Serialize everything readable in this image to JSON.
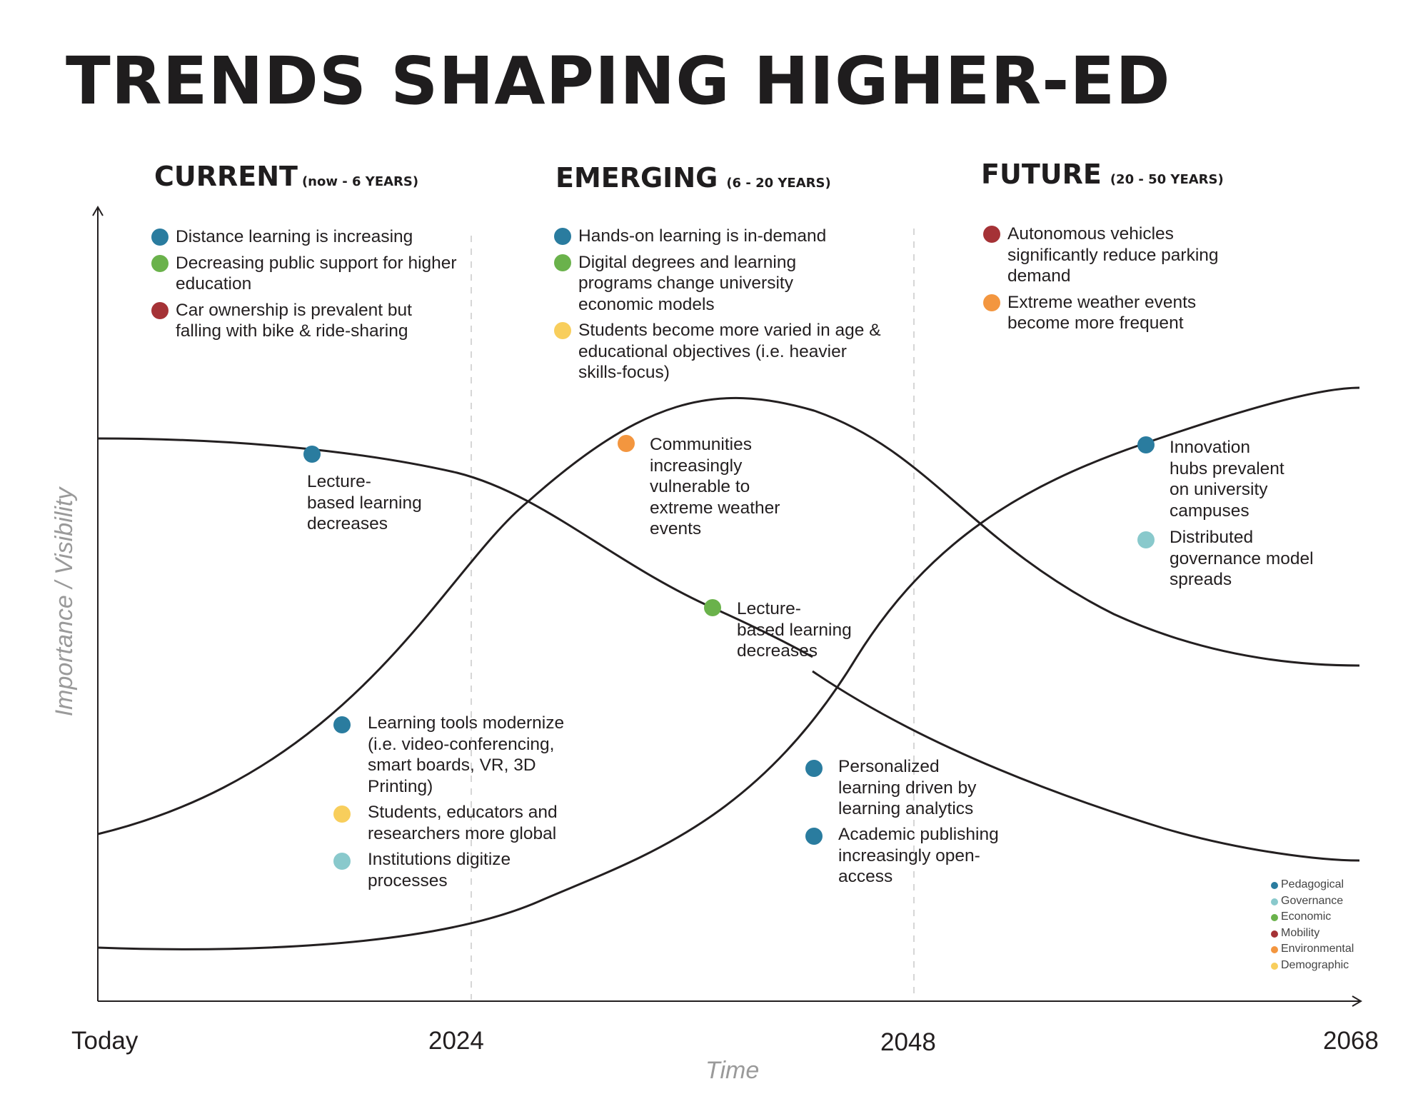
{
  "title": "TRENDS SHAPING HIGHER-ED",
  "colors": {
    "Pedagogical": "#2a7c9f",
    "Governance": "#89c9cc",
    "Economic": "#6ab24b",
    "Mobility": "#a53236",
    "Environmental": "#f3963f",
    "Demographic": "#f8ce5c"
  },
  "columns": [
    {
      "name": "CURRENT",
      "range": "(now - 6 YEARS)",
      "items": [
        {
          "category": "Pedagogical",
          "text": "Distance learning is increasing"
        },
        {
          "category": "Economic",
          "text": "Decreasing public support for higher education"
        },
        {
          "category": "Mobility",
          "text": "Car ownership is prevalent but falling with bike & ride-sharing"
        }
      ]
    },
    {
      "name": "EMERGING",
      "range": "(6 - 20 YEARS)",
      "items": [
        {
          "category": "Pedagogical",
          "text": "Hands-on learning is in-demand"
        },
        {
          "category": "Economic",
          "text": "Digital degrees and learning programs change university economic models"
        },
        {
          "category": "Demographic",
          "text": "Students become more varied in age & educational objectives (i.e. heavier skills-focus)"
        }
      ]
    },
    {
      "name": "FUTURE",
      "range": "(20 - 50 YEARS)",
      "items": [
        {
          "category": "Mobility",
          "text": "Autonomous vehicles significantly reduce parking demand"
        },
        {
          "category": "Environmental",
          "text": "Extreme weather events become more frequent"
        }
      ]
    }
  ],
  "annotations": {
    "lecture_1": {
      "category": "Pedagogical",
      "text": "Lecture-\nbased learning\ndecreases"
    },
    "communities": {
      "category": "Environmental",
      "text": "Communities\nincreasingly\nvulnerable to\nextreme weather\nevents"
    },
    "lecture_2": {
      "category": "Economic",
      "text": "Lecture-\nbased learning\ndecreases"
    },
    "innovation": {
      "category": "Pedagogical",
      "text": "Innovation\nhubs prevalent\non university\ncampuses"
    },
    "distributed": {
      "category": "Governance",
      "text": "Distributed\ngovernance model\nspreads"
    },
    "learning_tools": {
      "category": "Pedagogical",
      "text": "Learning tools modernize\n(i.e. video-conferencing,\nsmart boards, VR, 3D\nPrinting)"
    },
    "students_global": {
      "category": "Demographic",
      "text": "Students, educators and\nresearchers more global"
    },
    "institutions": {
      "category": "Governance",
      "text": "Institutions digitize\nprocesses"
    },
    "personalized": {
      "category": "Pedagogical",
      "text": "Personalized\nlearning driven by\nlearning analytics"
    },
    "academic": {
      "category": "Pedagogical",
      "text": "Academic publishing\nincreasingly open-\naccess"
    }
  },
  "axes": {
    "x_ticks": [
      "Today",
      "2024",
      "2048",
      "2068"
    ],
    "x_title": "Time",
    "y_title": "Importance / Visibility"
  },
  "legend": [
    "Pedagogical",
    "Governance",
    "Economic",
    "Mobility",
    "Environmental",
    "Demographic"
  ]
}
